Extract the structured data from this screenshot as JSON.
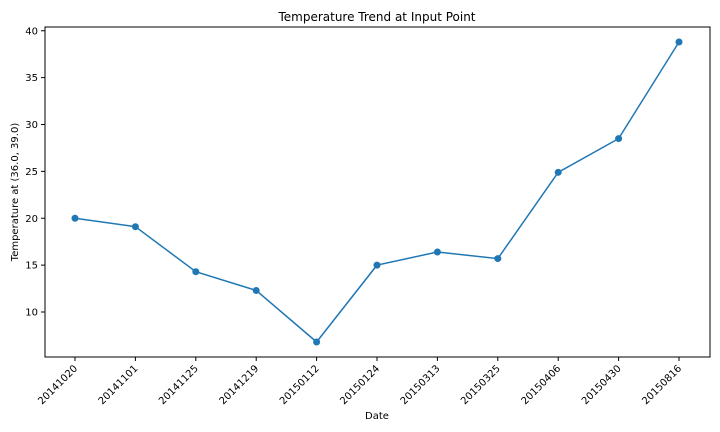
{
  "chart_data": {
    "type": "line",
    "title": "Temperature Trend at Input Point",
    "xlabel": "Date",
    "ylabel": "Temperature at (36.0, 39.0)",
    "categories": [
      "20141020",
      "20141101",
      "20141125",
      "20141219",
      "20150112",
      "20150124",
      "20150313",
      "20150325",
      "20150406",
      "20150430",
      "20150816"
    ],
    "series": [
      {
        "values": [
          20.0,
          19.1,
          14.3,
          12.3,
          6.8,
          15.0,
          16.4,
          15.7,
          24.9,
          28.5,
          38.8
        ],
        "color": "#1f77b4",
        "marker": "circle"
      }
    ],
    "ylim": [
      5.2,
      40.4
    ],
    "yticks": [
      10,
      15,
      20,
      25,
      30,
      35,
      40
    ],
    "grid": false,
    "legend": "none"
  }
}
